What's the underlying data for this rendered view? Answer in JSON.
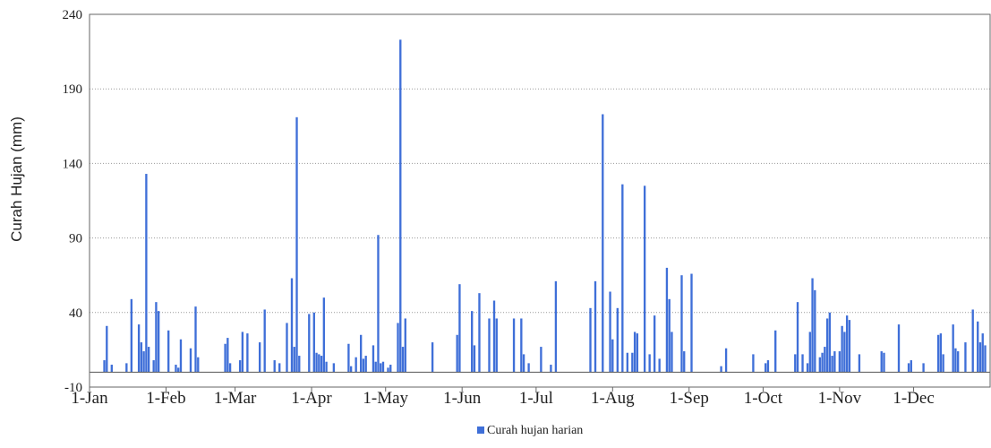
{
  "chart_data": {
    "type": "bar",
    "title": "",
    "xlabel": "",
    "ylabel": "Curah Hujan (mm)",
    "ylim": [
      -10,
      240
    ],
    "yticks": [
      -10,
      40,
      90,
      140,
      190,
      240
    ],
    "ytick_labels": [
      "-10",
      "40",
      "90",
      "140",
      "190",
      "240"
    ],
    "xlim_day": [
      1,
      365
    ],
    "x_unit": "day of year",
    "month_ticks": [
      {
        "label": "1-Jan",
        "day": 1
      },
      {
        "label": "1-Feb",
        "day": 32
      },
      {
        "label": "1-Mar",
        "day": 60
      },
      {
        "label": "1-Apr",
        "day": 91
      },
      {
        "label": "1-May",
        "day": 121
      },
      {
        "label": "1-Jun",
        "day": 152
      },
      {
        "label": "1-Jul",
        "day": 182
      },
      {
        "label": "1-Aug",
        "day": 213
      },
      {
        "label": "1-Sep",
        "day": 244
      },
      {
        "label": "1-Oct",
        "day": 274
      },
      {
        "label": "1-Nov",
        "day": 305
      },
      {
        "label": "1-Dec",
        "day": 335
      }
    ],
    "grid": {
      "horizontal": true,
      "style": "dotted"
    },
    "legend_position": "bottom-center",
    "series": [
      {
        "name": "Curah hujan harian",
        "color": "#3f6fd8",
        "points": [
          [
            7,
            8
          ],
          [
            8,
            31
          ],
          [
            10,
            5
          ],
          [
            16,
            6
          ],
          [
            18,
            49
          ],
          [
            21,
            32
          ],
          [
            22,
            20
          ],
          [
            23,
            14
          ],
          [
            24,
            133
          ],
          [
            25,
            17
          ],
          [
            27,
            8
          ],
          [
            28,
            47
          ],
          [
            29,
            41
          ],
          [
            33,
            28
          ],
          [
            36,
            5
          ],
          [
            37,
            3
          ],
          [
            38,
            22
          ],
          [
            42,
            16
          ],
          [
            44,
            44
          ],
          [
            45,
            10
          ],
          [
            56,
            19
          ],
          [
            57,
            23
          ],
          [
            58,
            6
          ],
          [
            62,
            8
          ],
          [
            63,
            27
          ],
          [
            65,
            26
          ],
          [
            70,
            20
          ],
          [
            72,
            42
          ],
          [
            76,
            8
          ],
          [
            78,
            6
          ],
          [
            81,
            33
          ],
          [
            83,
            63
          ],
          [
            84,
            17
          ],
          [
            85,
            171
          ],
          [
            86,
            11
          ],
          [
            90,
            39
          ],
          [
            92,
            40
          ],
          [
            93,
            13
          ],
          [
            94,
            12
          ],
          [
            95,
            11
          ],
          [
            96,
            50
          ],
          [
            97,
            7
          ],
          [
            100,
            6
          ],
          [
            106,
            19
          ],
          [
            107,
            4
          ],
          [
            109,
            10
          ],
          [
            111,
            25
          ],
          [
            112,
            9
          ],
          [
            113,
            11
          ],
          [
            116,
            18
          ],
          [
            117,
            7
          ],
          [
            118,
            92
          ],
          [
            119,
            6
          ],
          [
            120,
            7
          ],
          [
            122,
            3
          ],
          [
            123,
            5
          ],
          [
            126,
            33
          ],
          [
            127,
            223
          ],
          [
            128,
            17
          ],
          [
            129,
            36
          ],
          [
            140,
            20
          ],
          [
            150,
            25
          ],
          [
            151,
            59
          ],
          [
            156,
            41
          ],
          [
            157,
            18
          ],
          [
            159,
            53
          ],
          [
            163,
            36
          ],
          [
            165,
            48
          ],
          [
            166,
            36
          ],
          [
            173,
            36
          ],
          [
            176,
            36
          ],
          [
            177,
            12
          ],
          [
            179,
            6
          ],
          [
            184,
            17
          ],
          [
            188,
            5
          ],
          [
            190,
            61
          ],
          [
            204,
            43
          ],
          [
            206,
            61
          ],
          [
            209,
            173
          ],
          [
            212,
            54
          ],
          [
            213,
            22
          ],
          [
            215,
            43
          ],
          [
            217,
            126
          ],
          [
            219,
            13
          ],
          [
            221,
            13
          ],
          [
            222,
            27
          ],
          [
            223,
            26
          ],
          [
            226,
            125
          ],
          [
            228,
            12
          ],
          [
            230,
            38
          ],
          [
            232,
            9
          ],
          [
            235,
            70
          ],
          [
            236,
            49
          ],
          [
            237,
            27
          ],
          [
            241,
            65
          ],
          [
            242,
            14
          ],
          [
            245,
            66
          ],
          [
            257,
            4
          ],
          [
            259,
            16
          ],
          [
            270,
            12
          ],
          [
            275,
            6
          ],
          [
            276,
            8
          ],
          [
            279,
            28
          ],
          [
            287,
            12
          ],
          [
            288,
            47
          ],
          [
            290,
            12
          ],
          [
            292,
            6
          ],
          [
            293,
            27
          ],
          [
            294,
            63
          ],
          [
            295,
            55
          ],
          [
            297,
            10
          ],
          [
            298,
            13
          ],
          [
            299,
            17
          ],
          [
            300,
            36
          ],
          [
            301,
            40
          ],
          [
            302,
            11
          ],
          [
            303,
            14
          ],
          [
            305,
            14
          ],
          [
            306,
            31
          ],
          [
            307,
            27
          ],
          [
            308,
            38
          ],
          [
            309,
            35
          ],
          [
            313,
            12
          ],
          [
            322,
            14
          ],
          [
            323,
            13
          ],
          [
            329,
            32
          ],
          [
            333,
            6
          ],
          [
            334,
            8
          ],
          [
            339,
            6
          ],
          [
            345,
            25
          ],
          [
            346,
            26
          ],
          [
            347,
            12
          ],
          [
            351,
            32
          ],
          [
            352,
            16
          ],
          [
            353,
            14
          ],
          [
            356,
            20
          ],
          [
            359,
            42
          ],
          [
            361,
            34
          ],
          [
            362,
            20
          ],
          [
            363,
            26
          ],
          [
            364,
            18
          ]
        ]
      }
    ]
  }
}
